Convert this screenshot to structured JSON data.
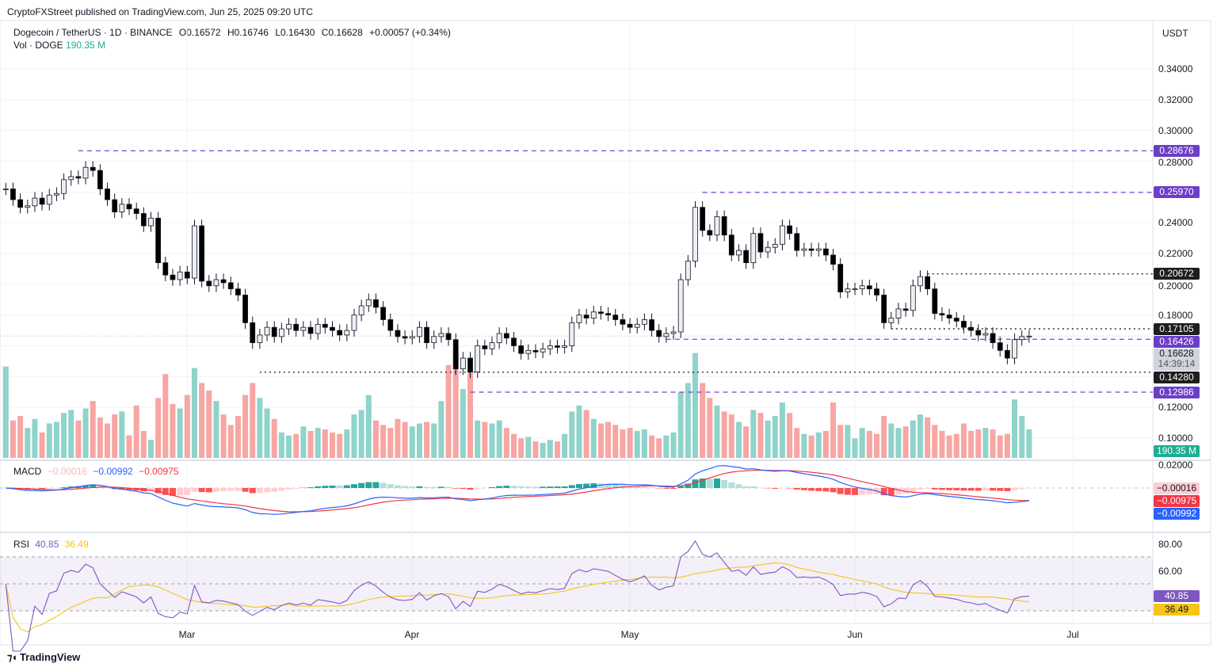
{
  "header": {
    "published": "CryptoFXStreet published on TradingView.com, Jun 25, 2025 09:20 UTC",
    "symbol": "Dogecoin / TetherUS · 1D · BINANCE",
    "open": "O0.16572",
    "high": "H0.16746",
    "low": "L0.16430",
    "close": "C0.16628",
    "change": "+0.00057 (+0.34%)",
    "vol_label": "Vol · DOGE",
    "vol_value": "190.35 M",
    "currency": "USDT"
  },
  "footer": {
    "logo": "TradingView"
  },
  "chart_data": {
    "type": "candlestick",
    "x_start": "2025-02-04",
    "x_end": "2025-06-25",
    "interval": "1D",
    "close": [
      0.262,
      0.255,
      0.25,
      0.251,
      0.256,
      0.252,
      0.258,
      0.259,
      0.268,
      0.27,
      0.269,
      0.276,
      0.274,
      0.262,
      0.255,
      0.247,
      0.252,
      0.249,
      0.246,
      0.238,
      0.243,
      0.214,
      0.206,
      0.203,
      0.208,
      0.204,
      0.238,
      0.202,
      0.199,
      0.203,
      0.201,
      0.197,
      0.193,
      0.175,
      0.162,
      0.167,
      0.172,
      0.166,
      0.171,
      0.174,
      0.17,
      0.172,
      0.168,
      0.174,
      0.172,
      0.17,
      0.167,
      0.17,
      0.18,
      0.186,
      0.19,
      0.185,
      0.177,
      0.17,
      0.166,
      0.165,
      0.166,
      0.172,
      0.162,
      0.166,
      0.168,
      0.164,
      0.145,
      0.152,
      0.143,
      0.16,
      0.158,
      0.162,
      0.168,
      0.165,
      0.16,
      0.155,
      0.157,
      0.156,
      0.158,
      0.16,
      0.159,
      0.16,
      0.175,
      0.18,
      0.178,
      0.182,
      0.181,
      0.18,
      0.177,
      0.174,
      0.172,
      0.174,
      0.177,
      0.17,
      0.166,
      0.168,
      0.169,
      0.203,
      0.215,
      0.25,
      0.235,
      0.232,
      0.244,
      0.232,
      0.219,
      0.222,
      0.214,
      0.233,
      0.221,
      0.224,
      0.226,
      0.238,
      0.233,
      0.222,
      0.223,
      0.222,
      0.223,
      0.219,
      0.213,
      0.195,
      0.197,
      0.197,
      0.199,
      0.197,
      0.193,
      0.175,
      0.178,
      0.184,
      0.183,
      0.199,
      0.205,
      0.197,
      0.181,
      0.18,
      0.178,
      0.176,
      0.172,
      0.17,
      0.167,
      0.168,
      0.162,
      0.157,
      0.152,
      0.164,
      0.166,
      0.16628
    ],
    "volume_millions": [
      610,
      250,
      280,
      200,
      260,
      170,
      230,
      240,
      300,
      320,
      250,
      330,
      380,
      270,
      230,
      290,
      310,
      150,
      350,
      180,
      120,
      400,
      560,
      360,
      330,
      420,
      600,
      500,
      450,
      380,
      290,
      220,
      280,
      420,
      500,
      400,
      330,
      260,
      170,
      150,
      160,
      210,
      180,
      200,
      190,
      170,
      160,
      190,
      290,
      320,
      420,
      250,
      220,
      200,
      260,
      240,
      210,
      230,
      240,
      230,
      380,
      620,
      700,
      460,
      600,
      250,
      240,
      230,
      250,
      200,
      160,
      130,
      140,
      110,
      100,
      120,
      110,
      160,
      310,
      350,
      320,
      260,
      230,
      240,
      220,
      190,
      200,
      180,
      190,
      150,
      130,
      150,
      170,
      440,
      500,
      700,
      500,
      400,
      350,
      310,
      290,
      240,
      210,
      320,
      300,
      250,
      280,
      370,
      300,
      200,
      160,
      150,
      170,
      180,
      370,
      220,
      220,
      130,
      200,
      180,
      160,
      280,
      230,
      200,
      210,
      250,
      290,
      270,
      220,
      180,
      150,
      160,
      230,
      180,
      190,
      200,
      190,
      150,
      160,
      390,
      280,
      190.35
    ],
    "y_ticks": [
      "0.34000",
      "0.32000",
      "0.30000",
      "0.28000",
      "0.24000",
      "0.22000",
      "0.20000",
      "0.18000",
      "0.12000",
      "0.10000"
    ],
    "ylim": [
      0.0906,
      0.3637
    ],
    "x_ticks": [
      "Mar",
      "Apr",
      "May",
      "Jun",
      "Jul"
    ],
    "levels": [
      {
        "value": "0.28676",
        "style": "dashed",
        "color": "#7b3fe4",
        "from": "2025-02-14"
      },
      {
        "value": "0.25970",
        "style": "dashed",
        "color": "#7b3fe4",
        "from": "2025-05-11"
      },
      {
        "value": "0.20672",
        "style": "dotted",
        "color": "#131722",
        "from": "2025-06-11"
      },
      {
        "value": "0.17105",
        "style": "dotted",
        "color": "#131722",
        "from": "2025-06-06"
      },
      {
        "value": "0.16426",
        "style": "dashed",
        "color": "#7b3fe4",
        "from": "2025-05-06"
      },
      {
        "value": "0.14280",
        "style": "dotted",
        "color": "#131722",
        "from": "2025-03-11"
      },
      {
        "value": "0.12986",
        "style": "dashed",
        "color": "#7b3fe4",
        "from": "2025-04-09"
      }
    ],
    "last_price": "0.16628",
    "countdown": "14:39:14",
    "macd": {
      "label": "MACD",
      "hist": "−0.00016",
      "macd": "−0.00992",
      "signal": "−0.00975",
      "tick": "0.02000",
      "colors": {
        "macd": "#2962ff",
        "signal": "#f23645"
      }
    },
    "rsi": {
      "label": "RSI",
      "value": "40.85",
      "ma": "36.49",
      "ticks": [
        "80.00",
        "60.00"
      ],
      "colors": {
        "rsi": "#7e57c2",
        "ma": "#f5c518"
      }
    },
    "colors": {
      "up_volume": "#8fd3ca",
      "down_volume": "#f7a6a3",
      "vol_label": "#22ab94"
    }
  }
}
